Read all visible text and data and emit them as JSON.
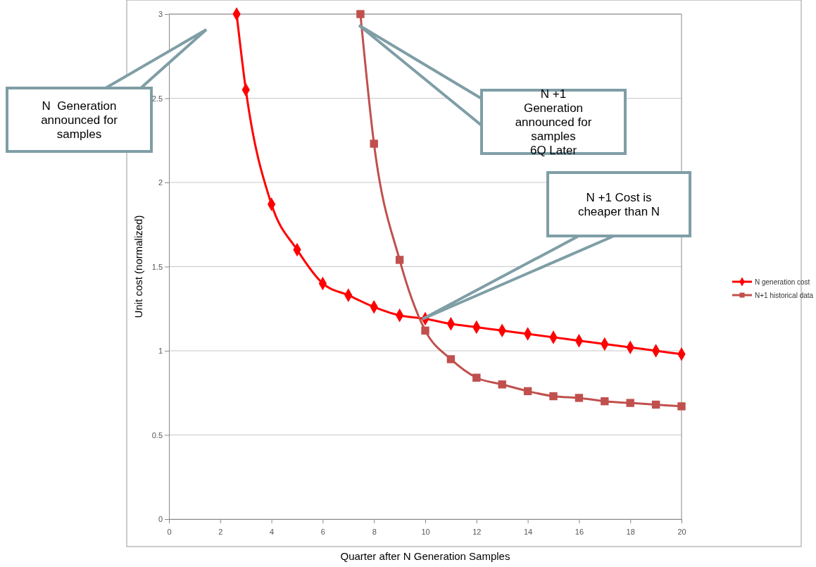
{
  "chart_data": {
    "type": "line",
    "xlabel": "Quarter after N Generation  Samples",
    "ylabel": "Unit cost (normalized)",
    "xlim": [
      0,
      20
    ],
    "xticks": [
      0,
      2,
      4,
      6,
      8,
      10,
      12,
      14,
      16,
      18,
      20
    ],
    "ylim": [
      0,
      3
    ],
    "yticks": [
      0,
      0.5,
      1,
      1.5,
      2,
      2.5,
      3
    ],
    "grid": "y",
    "legend": "right",
    "series": [
      {
        "name": "N generation cost",
        "color": "#ff0000",
        "marker": "diamond",
        "x": [
          2.64,
          3,
          4,
          5,
          6,
          7,
          8,
          9,
          10,
          11,
          12,
          13,
          14,
          15,
          16,
          17,
          18,
          19,
          20
        ],
        "values": [
          3,
          2.55,
          1.87,
          1.6,
          1.4,
          1.33,
          1.26,
          1.21,
          1.19,
          1.16,
          1.14,
          1.12,
          1.1,
          1.08,
          1.06,
          1.04,
          1.02,
          1,
          0.98
        ]
      },
      {
        "name": "N+1 historical data",
        "color": "#c0504d",
        "marker": "square",
        "x": [
          7.47,
          8,
          9,
          10,
          11,
          12,
          13,
          14,
          15,
          16,
          17,
          18,
          19,
          20
        ],
        "values": [
          3,
          2.23,
          1.54,
          1.12,
          0.95,
          0.84,
          0.8,
          0.76,
          0.73,
          0.72,
          0.7,
          0.69,
          0.68,
          0.67
        ]
      }
    ],
    "annotations": [
      "N  Generation\nannounced for\nsamples",
      "N +1\nGeneration\nannounced for\nsamples\n6Q Later",
      "N +1 Cost is\ncheaper than N"
    ]
  }
}
